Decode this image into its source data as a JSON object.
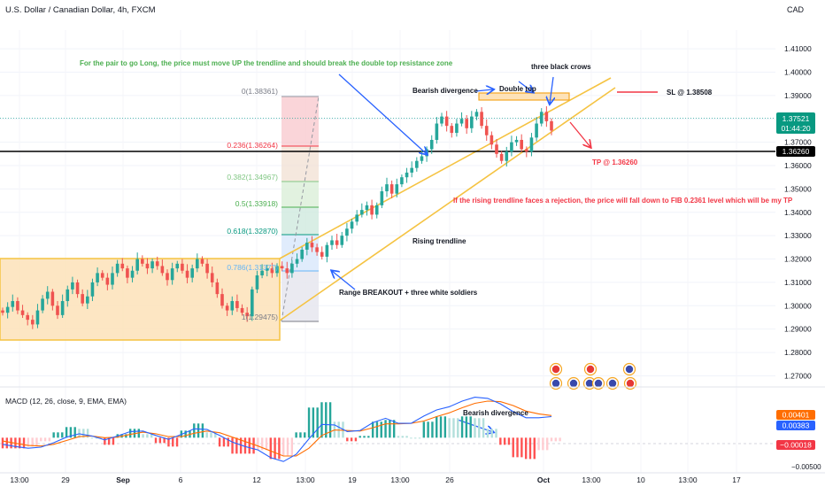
{
  "header": {
    "symbol_title": "U.S. Dollar / Canadian Dollar, 4h, FXCM",
    "currency": "CAD"
  },
  "annotations": {
    "long_condition": "For the pair to go Long, the price must move UP the trendline and should break the double top resistance zone",
    "bearish_divergence": "Bearish divergence",
    "double_top": "Double top",
    "three_black_crows": "three black crows",
    "sl": "SL @ 1.38508",
    "tp": "TP @ 1.36260",
    "rejection_note": "If the rising trendline faces a rejection, the price will fall down to FIB 0.2361 level which will be my TP",
    "rising_trendline": "Rising trendline",
    "range_breakout": "Range BREAKOUT + three white soldiers",
    "macd_bearish_divergence": "Bearish divergence"
  },
  "fib_labels": {
    "f0": "0(1.38361)",
    "f236": "0.236(1.36264)",
    "f382": "0.382(1.34967)",
    "f5": "0.5(1.33918)",
    "f618": "0.618(1.32870)",
    "f786": "0.786(1.31377)",
    "f1": "1(1.29475)"
  },
  "price_badges": {
    "last_price": "1.37521",
    "countdown": "01:44:20",
    "tp_level": "1.36260",
    "macd_orange": "0.00401",
    "macd_blue": "0.00383",
    "macd_hist": "−0.00018"
  },
  "macd": {
    "title": "MACD (12, 26, close, 9, EMA, EMA)"
  },
  "colors": {
    "up": "#26a69a",
    "down": "#ef5350",
    "trend": "#f5c342",
    "arrow": "#2962ff",
    "annotation_green": "#4caf50",
    "annotation_red": "#f23645",
    "macd_line": "#2962ff",
    "signal_line": "#ff6d00"
  },
  "chart_data": {
    "type": "candlestick",
    "symbol": "U.S. Dollar / Canadian Dollar",
    "timeframe": "4h",
    "y_axis_ticks": [
      "1.41000",
      "1.40000",
      "1.39000",
      "1.38000",
      "1.37000",
      "1.36000",
      "1.35000",
      "1.34000",
      "1.33000",
      "1.32000",
      "1.31000",
      "1.30000",
      "1.29000",
      "1.28000",
      "1.27000"
    ],
    "y_range": [
      1.266,
      1.418
    ],
    "x_axis_ticks": [
      "13:00",
      "29",
      "Sep",
      "6",
      "12",
      "13:00",
      "19",
      "13:00",
      "26",
      "Oct",
      "13:00",
      "10",
      "13:00",
      "17"
    ],
    "close_path": [
      1.297,
      1.2995,
      1.302,
      1.298,
      1.296,
      1.294,
      1.292,
      1.298,
      1.303,
      1.306,
      1.3,
      1.296,
      1.302,
      1.307,
      1.31,
      1.305,
      1.301,
      1.304,
      1.31,
      1.314,
      1.312,
      1.309,
      1.314,
      1.318,
      1.316,
      1.312,
      1.315,
      1.32,
      1.318,
      1.316,
      1.319,
      1.317,
      1.314,
      1.311,
      1.316,
      1.318,
      1.315,
      1.312,
      1.316,
      1.32,
      1.318,
      1.314,
      1.31,
      1.305,
      1.3,
      1.298,
      1.302,
      1.299,
      1.297,
      1.2955,
      1.307,
      1.313,
      1.315,
      1.316,
      1.314,
      1.317,
      1.316,
      1.314,
      1.318,
      1.32,
      1.324,
      1.327,
      1.325,
      1.323,
      1.321,
      1.326,
      1.328,
      1.326,
      1.33,
      1.333,
      1.336,
      1.339,
      1.341,
      1.343,
      1.339,
      1.343,
      1.349,
      1.352,
      1.348,
      1.352,
      1.355,
      1.357,
      1.359,
      1.362,
      1.364,
      1.367,
      1.371,
      1.378,
      1.381,
      1.377,
      1.374,
      1.378,
      1.38,
      1.376,
      1.381,
      1.383,
      1.377,
      1.373,
      1.369,
      1.365,
      1.362,
      1.366,
      1.37,
      1.371,
      1.367,
      1.366,
      1.372,
      1.378,
      1.383,
      1.379,
      1.375
    ],
    "fibonacci": [
      {
        "level": 0,
        "price": 1.38361
      },
      {
        "level": 0.236,
        "price": 1.36264
      },
      {
        "level": 0.382,
        "price": 1.34967
      },
      {
        "level": 0.5,
        "price": 1.33918
      },
      {
        "level": 0.618,
        "price": 1.3287
      },
      {
        "level": 0.786,
        "price": 1.31377
      },
      {
        "level": 1,
        "price": 1.29475
      }
    ],
    "range_zone": {
      "top": 1.3205,
      "bottom": 1.2875
    },
    "double_top_zone": {
      "top": 1.3845,
      "bottom": 1.3828
    },
    "stop_loss": 1.38508,
    "take_profit": 1.3626,
    "last_price": 1.37521,
    "macd": {
      "params": "12, 26, close, 9, EMA, EMA",
      "y_range": [
        -0.0057,
        0.0082
      ],
      "macd_line": [
        -0.0012,
        -0.0016,
        -0.0019,
        -0.0017,
        -0.0009,
        0.0001,
        0.0007,
        0.0003,
        -0.0004,
        0.0003,
        0.0011,
        0.0012,
        0.0004,
        -0.0003,
        0.0006,
        0.0016,
        0.0015,
        0.0004,
        -0.0008,
        -0.0016,
        -0.0022,
        -0.0036,
        -0.0043,
        -0.003,
        -0.0002,
        0.0024,
        0.0023,
        0.0011,
        0.0013,
        0.0027,
        0.0035,
        0.0026,
        0.0026,
        0.0039,
        0.005,
        0.0056,
        0.0066,
        0.0073,
        0.0071,
        0.0061,
        0.0047,
        0.0036,
        0.0036,
        0.0038
      ],
      "signal_line": [
        -0.0006,
        -0.001,
        -0.0014,
        -0.0015,
        -0.0012,
        -0.0005,
        0.0002,
        0.0003,
        0.0,
        0.0001,
        0.0006,
        0.001,
        0.0007,
        0.0002,
        0.0002,
        0.0008,
        0.0012,
        0.0009,
        0.0001,
        -0.0007,
        -0.0015,
        -0.0024,
        -0.0033,
        -0.0033,
        -0.0019,
        0.0004,
        0.0014,
        0.0013,
        0.0012,
        0.0018,
        0.0025,
        0.0025,
        0.0026,
        0.003,
        0.0038,
        0.0045,
        0.0054,
        0.0062,
        0.0066,
        0.0065,
        0.0058,
        0.0048,
        0.0043,
        0.004
      ],
      "last_values": {
        "signal": 0.00401,
        "macd": 0.00383,
        "histogram": -0.00018
      }
    }
  }
}
